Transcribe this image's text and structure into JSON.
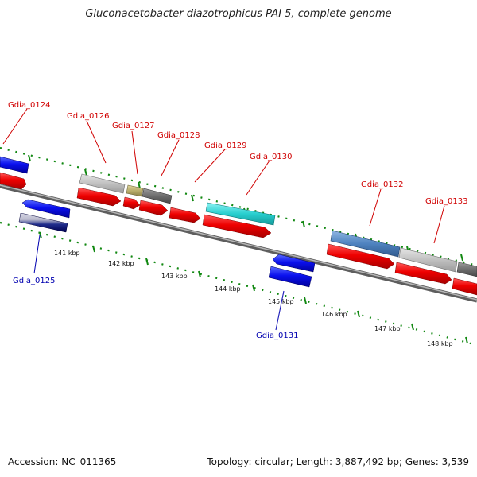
{
  "title": "Gluconacetobacter diazotrophicus PAI 5, complete genome",
  "footer": {
    "accession": "Accession: NC_011365",
    "summary": "Topology: circular; Length: 3,887,492 bp; Genes: 3,539"
  },
  "ticks": [
    "141 kbp",
    "142 kbp",
    "143 kbp",
    "144 kbp",
    "145 kbp",
    "146 kbp",
    "147 kbp",
    "148 kbp"
  ],
  "labels_forward": [
    "Gdia_0124",
    "Gdia_0126",
    "Gdia_0127",
    "Gdia_0128",
    "Gdia_0129",
    "Gdia_0130",
    "Gdia_0132",
    "Gdia_0133"
  ],
  "labels_reverse": [
    "Gdia_0125",
    "Gdia_0131"
  ],
  "colors": {
    "forward_label": "#d00000",
    "reverse_label": "#0000b0",
    "cds_forward": "#ee0000",
    "cds_reverse": "#0000ee",
    "tick": "#118811",
    "backbone": "#7a7a7a",
    "gene_gray": "#bdbdbd",
    "gene_dark": "#6d6d6d",
    "gene_olive": "#b8ad6c",
    "gene_cyan": "#28cfcf",
    "gene_steel": "#4f83c0"
  }
}
